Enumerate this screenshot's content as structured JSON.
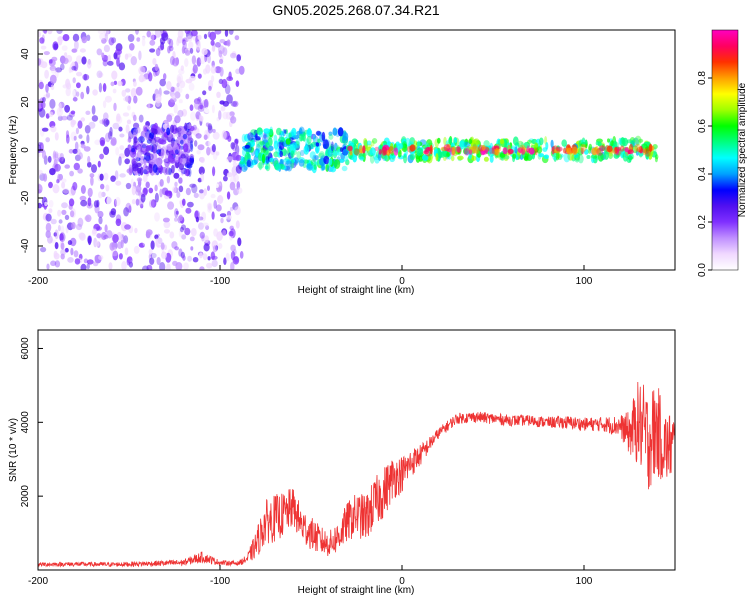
{
  "page_title": "GN05.2025.268.07.34.R21",
  "chart_data": [
    {
      "type": "heatmap",
      "name": "spectrogram",
      "title": "GN05.2025.268.07.34.R21",
      "xlabel": "Height of straight line (km)",
      "ylabel": "Frequency (Hz)",
      "xlim": [
        -200,
        150
      ],
      "ylim": [
        -50,
        50
      ],
      "xticks": [
        -200,
        -100,
        0,
        100
      ],
      "yticks": [
        -40,
        -20,
        0,
        20,
        40
      ],
      "tick_labels_x": [
        "-200",
        "-100",
        "0",
        "100"
      ],
      "tick_labels_y": [
        "-40",
        "-20",
        "0",
        "20",
        "40"
      ],
      "colorbar": {
        "label": "Normalized spectral amplitude",
        "range": [
          0,
          1
        ],
        "ticks": [
          "0.0",
          "0.2",
          "0.4",
          "0.6",
          "0.8"
        ],
        "colors": [
          "#ffffff",
          "#f0d8ff",
          "#c090ff",
          "#8030ff",
          "#5010f0",
          "#0000ff",
          "#00a0ff",
          "#00ffff",
          "#00ff80",
          "#00ff00",
          "#a0ff00",
          "#ffff00",
          "#ffa000",
          "#ff3000",
          "#ff0060",
          "#ff00c0"
        ]
      },
      "regions": [
        {
          "x_range": [
            -200,
            -88
          ],
          "freq_range": [
            -50,
            50
          ],
          "amplitude": 0.15,
          "description": "broadband noise"
        },
        {
          "x_range": [
            -150,
            -115
          ],
          "freq_range": [
            -10,
            10
          ],
          "amplitude": 0.22
        },
        {
          "x_range": [
            -88,
            -30
          ],
          "freq_range": [
            -8,
            8
          ],
          "amplitude": 0.45
        },
        {
          "x_range": [
            -30,
            140
          ],
          "freq_range": [
            -4,
            4
          ],
          "amplitude": 0.55
        },
        {
          "x_range": [
            -30,
            140
          ],
          "freq_range": [
            -1,
            1
          ],
          "amplitude": 0.9
        }
      ],
      "band_center_hz": 0
    },
    {
      "type": "line",
      "name": "snr",
      "title": "",
      "xlabel": "Height of straight line (km)",
      "ylabel": "SNR (10 * v/v)",
      "xlim": [
        -200,
        150
      ],
      "ylim": [
        0,
        6500
      ],
      "xticks": [
        -200,
        -100,
        0,
        100
      ],
      "yticks": [
        2000,
        4000,
        6000
      ],
      "tick_labels_x": [
        "-200",
        "-100",
        "0",
        "100"
      ],
      "tick_labels_y": [
        "2000",
        "4000",
        "6000"
      ],
      "color": "#ee3333",
      "series": [
        {
          "name": "SNR",
          "x": [
            -200,
            -180,
            -160,
            -140,
            -120,
            -110,
            -100,
            -90,
            -85,
            -80,
            -75,
            -70,
            -65,
            -60,
            -55,
            -50,
            -45,
            -40,
            -35,
            -30,
            -25,
            -20,
            -15,
            -10,
            -5,
            0,
            5,
            10,
            15,
            20,
            25,
            30,
            40,
            50,
            60,
            70,
            80,
            90,
            100,
            110,
            120,
            125,
            130,
            135,
            140,
            145,
            150
          ],
          "y": [
            150,
            160,
            150,
            170,
            200,
            350,
            200,
            180,
            300,
            700,
            1300,
            1400,
            1500,
            1700,
            1200,
            1000,
            800,
            700,
            900,
            1300,
            1500,
            1400,
            1800,
            2100,
            2500,
            2600,
            2900,
            3100,
            3400,
            3700,
            3900,
            4100,
            4150,
            4100,
            4050,
            4050,
            4000,
            4000,
            3950,
            3950,
            3900,
            3700,
            4000,
            3500,
            3800,
            3300,
            3400
          ],
          "noise_amplitude": [
            60,
            60,
            60,
            70,
            90,
            150,
            70,
            60,
            120,
            400,
            600,
            650,
            600,
            550,
            500,
            450,
            400,
            350,
            450,
            550,
            600,
            650,
            700,
            700,
            600,
            500,
            400,
            300,
            200,
            150,
            150,
            150,
            150,
            150,
            150,
            150,
            150,
            180,
            180,
            200,
            300,
            600,
            1200,
            1400,
            1300,
            1000,
            900
          ]
        }
      ]
    }
  ]
}
